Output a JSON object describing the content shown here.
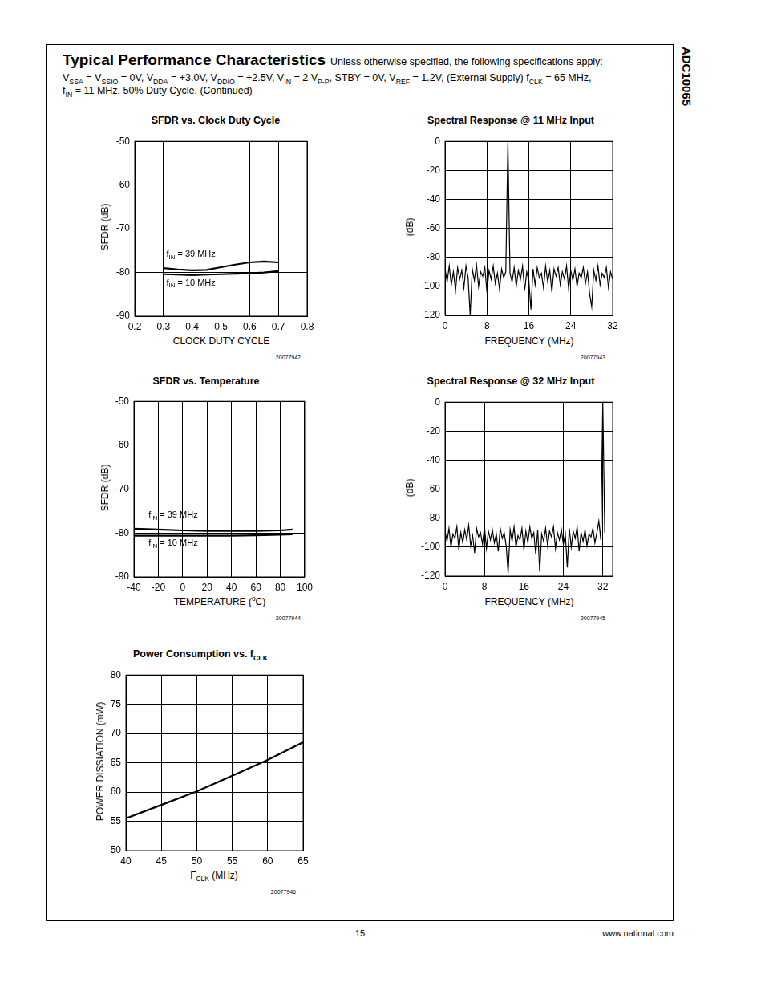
{
  "page": {
    "side_title": "ADC10065",
    "header_title": "Typical Performance Characteristics",
    "header_lines": [
      [
        "Unless otherwise specified, the following specifications apply:"
      ],
      [
        "V",
        {
          "sub": "SSA"
        },
        " = V",
        {
          "sub": "SSIO"
        },
        " = 0V, V",
        {
          "sub": "DDA"
        },
        " = +3.0V, V",
        {
          "sub": "DDIO"
        },
        " = +2.5V, V",
        {
          "sub": "IN"
        },
        " = 2 V",
        {
          "sub": "P-P"
        },
        ", STBY = 0V, V",
        {
          "sub": "REF"
        },
        " = 1.2V, (External Supply) f",
        {
          "sub": "CLK"
        },
        " = 65 MHz,"
      ],
      [
        "f",
        {
          "sub": "IN"
        },
        " = 11 MHz, 50% Duty Cycle.  (Continued)"
      ]
    ],
    "page_number": "15",
    "footer": "www.national.com"
  },
  "chart_data": [
    {
      "type": "line",
      "title": "SFDR vs. Clock Duty Cycle",
      "x_label": "CLOCK DUTY CYCLE",
      "y_label": "SFDR (dB)",
      "x": [
        0.3,
        0.35,
        0.4,
        0.45,
        0.5,
        0.55,
        0.6,
        0.65,
        0.7
      ],
      "series": [
        {
          "color": "#000000",
          "values": [
            -79.0,
            -79.3,
            -79.5,
            -79.4,
            -78.8,
            -78.2,
            -77.7,
            -77.5,
            -77.7
          ]
        },
        {
          "color": "#000000",
          "values": [
            -80.4,
            -80.5,
            -80.6,
            -80.5,
            -80.4,
            -80.3,
            -80.2,
            -80.0,
            -79.7
          ]
        }
      ],
      "xlim": [
        0.2,
        0.8
      ],
      "xticks": [
        0.2,
        0.3,
        0.4,
        0.5,
        0.6,
        0.7,
        0.8
      ],
      "ylim": [
        -90,
        -50
      ],
      "yticks": [
        -90,
        -80,
        -70,
        -60,
        -50
      ],
      "grid": true,
      "annotations": [
        {
          "text": [
            "f",
            {
              "sub": "IN"
            },
            " = 39 MHz"
          ],
          "x": 0.31,
          "y": -75.9
        },
        {
          "text": [
            "f",
            {
              "sub": "IN"
            },
            " = 10 MHz"
          ],
          "x": 0.31,
          "y": -82.4
        }
      ],
      "caption": "20077942"
    },
    {
      "type": "line",
      "title": "Spectral Response @ 11 MHz Input",
      "x_label": "FREQUENCY (MHz)",
      "y_label": "(dB)",
      "x": [
        0,
        0.4,
        0.8,
        1.2,
        1.6,
        2.0,
        2.4,
        2.8,
        3.2,
        3.6,
        4.0,
        4.4,
        4.8,
        5.2,
        5.6,
        6.0,
        6.4,
        6.8,
        7.2,
        7.6,
        8.0,
        8.4,
        8.8,
        9.2,
        9.6,
        10.0,
        10.4,
        10.8,
        11.2,
        11.6,
        12.0,
        12.4,
        12.8,
        13.2,
        13.6,
        14.0,
        14.4,
        14.8,
        15.2,
        15.6,
        16.0,
        16.4,
        16.8,
        17.2,
        17.6,
        18.0,
        18.4,
        18.8,
        19.2,
        19.6,
        20.0,
        20.4,
        20.8,
        21.2,
        21.6,
        22.0,
        22.4,
        22.8,
        23.2,
        23.6,
        24.0,
        24.4,
        24.8,
        25.2,
        25.6,
        26.0,
        26.4,
        26.8,
        27.2,
        27.6,
        28.0,
        28.4,
        28.8,
        29.2,
        29.6,
        30.0,
        30.4,
        30.8,
        31.2,
        31.6,
        32.0
      ],
      "series": [
        {
          "color": "#000000",
          "values": [
            -88,
            -97,
            -86,
            -99,
            -90,
            -103,
            -87,
            -95,
            -89,
            -101,
            -86,
            -94,
            -120,
            -88,
            -96,
            -85,
            -100,
            -90,
            -93,
            -87,
            -104,
            -89,
            -95,
            -86,
            -98,
            -91,
            -102,
            -88,
            -94,
            -90,
            0,
            -91,
            -97,
            -87,
            -100,
            -89,
            -95,
            -86,
            -103,
            -90,
            -96,
            -116,
            -88,
            -99,
            -87,
            -94,
            -91,
            -101,
            -86,
            -97,
            -89,
            -104,
            -88,
            -93,
            -87,
            -99,
            -90,
            -95,
            -86,
            -102,
            -89,
            -96,
            -88,
            -100,
            -91,
            -94,
            -87,
            -98,
            -90,
            -105,
            -114,
            -89,
            -96,
            -86,
            -99,
            -91,
            -94,
            -87,
            -101,
            -90,
            -95
          ]
        }
      ],
      "xlim": [
        0,
        32
      ],
      "xticks": [
        0,
        8,
        16,
        24,
        32
      ],
      "ylim": [
        -120,
        0
      ],
      "yticks": [
        -120,
        -100,
        -80,
        -60,
        -40,
        -20,
        0
      ],
      "grid": true,
      "caption": "20077943"
    },
    {
      "type": "line",
      "title": "SFDR vs. Temperature",
      "x_label": [
        "TEMPERATURE (",
        {
          "sup": "o"
        },
        "C)"
      ],
      "y_label": "SFDR (dB)",
      "x": [
        -40,
        -20,
        0,
        20,
        40,
        60,
        80,
        90
      ],
      "series": [
        {
          "color": "#000000",
          "values": [
            -79.0,
            -79.2,
            -79.4,
            -79.5,
            -79.5,
            -79.5,
            -79.4,
            -79.2
          ]
        },
        {
          "color": "#000000",
          "values": [
            -80.6,
            -80.6,
            -80.6,
            -80.6,
            -80.6,
            -80.5,
            -80.4,
            -80.3
          ]
        }
      ],
      "xlim": [
        -40,
        100
      ],
      "xticks": [
        -40,
        -20,
        0,
        20,
        40,
        60,
        80,
        100
      ],
      "ylim": [
        -90,
        -50
      ],
      "yticks": [
        -90,
        -80,
        -70,
        -60,
        -50
      ],
      "grid": true,
      "annotations": [
        {
          "text": [
            "f",
            {
              "sub": "IN"
            },
            " = 39 MHz"
          ],
          "x": -28,
          "y": -76.0
        },
        {
          "text": [
            "f",
            {
              "sub": "IN"
            },
            " = 10 MHz"
          ],
          "x": -28,
          "y": -82.4
        }
      ],
      "caption": "20077944"
    },
    {
      "type": "line",
      "title": "Spectral Response @ 32 MHz Input",
      "x_label": "FREQUENCY (MHz)",
      "y_label": "(dB)",
      "x": [
        0,
        0.4,
        0.8,
        1.2,
        1.6,
        2.0,
        2.4,
        2.8,
        3.2,
        3.6,
        4.0,
        4.4,
        4.8,
        5.2,
        5.6,
        6.0,
        6.4,
        6.8,
        7.2,
        7.6,
        8.0,
        8.4,
        8.8,
        9.2,
        9.6,
        10.0,
        10.4,
        10.8,
        11.2,
        11.6,
        12.0,
        12.4,
        12.8,
        13.2,
        13.6,
        14.0,
        14.4,
        14.8,
        15.2,
        15.6,
        16.0,
        16.4,
        16.8,
        17.2,
        17.6,
        18.0,
        18.4,
        18.8,
        19.2,
        19.6,
        20.0,
        20.4,
        20.8,
        21.2,
        21.6,
        22.0,
        22.4,
        22.8,
        23.2,
        23.6,
        24.0,
        24.4,
        24.8,
        25.2,
        25.6,
        26.0,
        26.4,
        26.8,
        27.2,
        27.6,
        28.0,
        28.4,
        28.8,
        29.2,
        29.6,
        30.0,
        30.4,
        30.8,
        31.2,
        31.6,
        32.0,
        32.4
      ],
      "series": [
        {
          "color": "#000000",
          "values": [
            -89,
            -96,
            -87,
            -100,
            -91,
            -94,
            -86,
            -102,
            -90,
            -97,
            -88,
            -95,
            -85,
            -99,
            -92,
            -104,
            -87,
            -93,
            -90,
            -98,
            -86,
            -101,
            -89,
            -95,
            -88,
            -97,
            -91,
            -103,
            -87,
            -94,
            -90,
            -99,
            -118,
            -88,
            -96,
            -86,
            -100,
            -92,
            -95,
            -87,
            -102,
            -89,
            -97,
            -86,
            -94,
            -90,
            -105,
            -88,
            -117,
            -91,
            -96,
            -87,
            -99,
            -89,
            -93,
            -86,
            -101,
            -90,
            -95,
            -88,
            -98,
            -91,
            -114,
            -87,
            -100,
            -89,
            -94,
            -86,
            -103,
            -90,
            -96,
            -88,
            -99,
            -91,
            -93,
            -87,
            -97,
            -90,
            -82,
            -95,
            0,
            -90
          ]
        }
      ],
      "xlim": [
        0,
        34
      ],
      "xticks": [
        0,
        8,
        16,
        24,
        32
      ],
      "ylim": [
        -120,
        0
      ],
      "yticks": [
        -120,
        -100,
        -80,
        -60,
        -40,
        -20,
        0
      ],
      "grid": true,
      "caption": "20077945"
    },
    {
      "type": "line",
      "title": [
        "Power Consumption vs. f",
        {
          "sub": "CLK"
        }
      ],
      "x_label": [
        "F",
        {
          "sub": "CLK"
        },
        " (MHz)"
      ],
      "y_label": "POWER DISSIATION (mW)",
      "x": [
        40,
        45,
        50,
        55,
        60,
        65
      ],
      "series": [
        {
          "color": "#000000",
          "values": [
            55.5,
            57.8,
            60.1,
            62.8,
            65.5,
            68.5
          ]
        }
      ],
      "xlim": [
        40,
        65
      ],
      "xticks": [
        40,
        45,
        50,
        55,
        60,
        65
      ],
      "ylim": [
        50,
        80
      ],
      "yticks": [
        50,
        55,
        60,
        65,
        70,
        75,
        80
      ],
      "grid": true,
      "caption": "20077946"
    }
  ]
}
